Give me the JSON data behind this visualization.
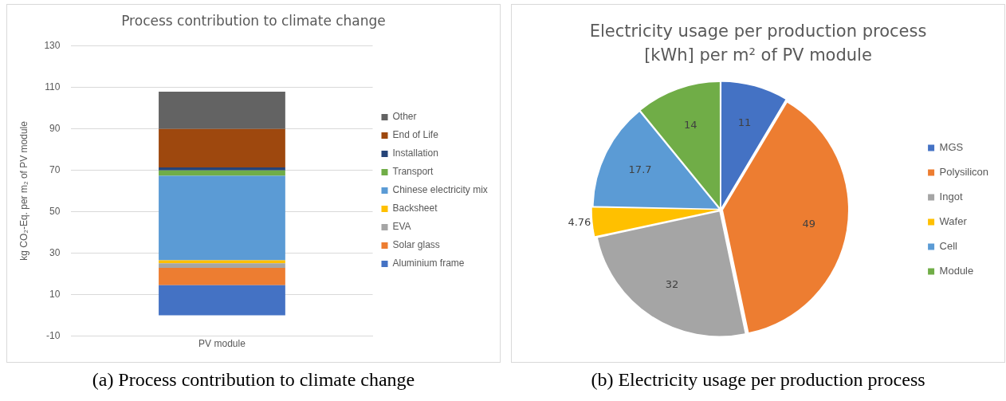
{
  "chart_data": [
    {
      "type": "bar",
      "title": "Process contribution to climate change",
      "ylabel": "kg CO₂-Eq. per m₂ of PV module",
      "categories": [
        "PV module"
      ],
      "stacked": true,
      "series": [
        {
          "name": "Aluminium frame",
          "color": "#4472c4",
          "values": [
            14.5
          ]
        },
        {
          "name": "Solar glass",
          "color": "#ed7d31",
          "values": [
            8.4
          ]
        },
        {
          "name": "EVA",
          "color": "#a5a5a5",
          "values": [
            2.2
          ]
        },
        {
          "name": "Backsheet",
          "color": "#ffc000",
          "values": [
            1.4
          ]
        },
        {
          "name": "Chinese electricity mix",
          "color": "#5b9bd5",
          "values": [
            40.8
          ]
        },
        {
          "name": "Transport",
          "color": "#70ad47",
          "values": [
            2.6
          ]
        },
        {
          "name": "Installation",
          "color": "#264478",
          "values": [
            1.4
          ]
        },
        {
          "name": "End of Life",
          "color": "#9e480e",
          "values": [
            18.5
          ]
        },
        {
          "name": "Other",
          "color": "#636363",
          "values": [
            18.0
          ]
        }
      ],
      "ylim": [
        -10,
        130
      ],
      "yticks": [
        -10,
        10,
        30,
        50,
        70,
        90,
        110,
        130
      ],
      "grid": "y",
      "legend": "right",
      "annotations": [
        "(a) Process contribution to climate change"
      ]
    },
    {
      "type": "pie",
      "title": "Electricity usage per production process [kWh] per m² of PV module",
      "categories": [
        "MGS",
        "Polysilicon",
        "Ingot",
        "Wafer",
        "Cell",
        "Module"
      ],
      "values": [
        11,
        49,
        32,
        4.76,
        17.7,
        14
      ],
      "colors": [
        "#4472c4",
        "#ed7d31",
        "#a5a5a5",
        "#ffc000",
        "#5b9bd5",
        "#70ad47"
      ],
      "data_labels": true,
      "legend": "right",
      "annotations": [
        "(b) Electricity usage per production process"
      ]
    }
  ]
}
